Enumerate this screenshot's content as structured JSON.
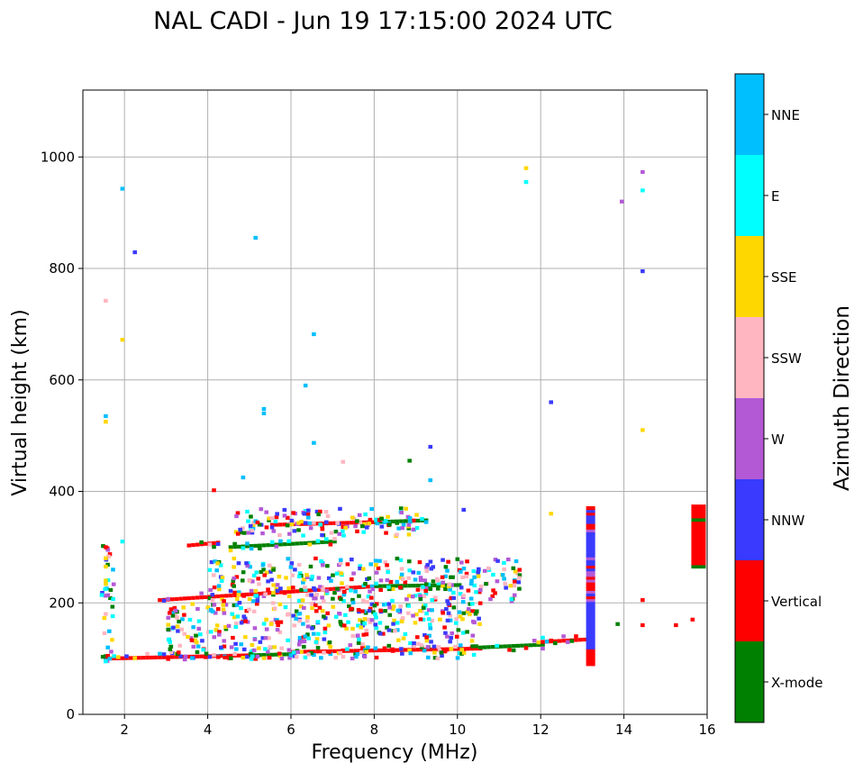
{
  "chart_data": {
    "type": "scatter",
    "title": "NAL CADI - Jun 19 17:15:00 2024 UTC",
    "xlabel": "Frequency (MHz)",
    "ylabel": "Virtual height (km)",
    "xlim": [
      1.0,
      16.0
    ],
    "ylim": [
      0,
      1120
    ],
    "xticks": [
      2,
      4,
      6,
      8,
      10,
      12,
      14,
      16
    ],
    "yticks": [
      0,
      200,
      400,
      600,
      800,
      1000
    ],
    "grid": true,
    "colorbar": {
      "label": "Azimuth Direction",
      "categories": [
        {
          "name": "X-mode",
          "color": "#008000"
        },
        {
          "name": "Vertical",
          "color": "#ff0000"
        },
        {
          "name": "NNW",
          "color": "#3a3aff"
        },
        {
          "name": "W",
          "color": "#b459d6"
        },
        {
          "name": "SSW",
          "color": "#ffb6c1"
        },
        {
          "name": "SSE",
          "color": "#ffd700"
        },
        {
          "name": "E",
          "color": "#00ffff"
        },
        {
          "name": "NNE",
          "color": "#00bfff"
        }
      ]
    },
    "scatter_points": [
      {
        "f": 1.5,
        "h": 95,
        "dir": "E"
      },
      {
        "f": 1.55,
        "h": 105,
        "dir": "Vertical"
      },
      {
        "f": 1.6,
        "h": 100,
        "dir": "NNE"
      },
      {
        "f": 1.55,
        "h": 120,
        "dir": "NNE"
      },
      {
        "f": 1.5,
        "h": 180,
        "dir": "SSW"
      },
      {
        "f": 1.5,
        "h": 240,
        "dir": "SSE"
      },
      {
        "f": 1.5,
        "h": 265,
        "dir": "SSE"
      },
      {
        "f": 1.5,
        "h": 280,
        "dir": "SSE"
      },
      {
        "f": 1.5,
        "h": 300,
        "dir": "Vertical"
      },
      {
        "f": 1.5,
        "h": 525,
        "dir": "SSE"
      },
      {
        "f": 1.5,
        "h": 535,
        "dir": "NNE"
      },
      {
        "f": 1.5,
        "h": 742,
        "dir": "SSW"
      },
      {
        "f": 1.9,
        "h": 310,
        "dir": "E"
      },
      {
        "f": 1.9,
        "h": 672,
        "dir": "SSE"
      },
      {
        "f": 1.9,
        "h": 943,
        "dir": "NNE"
      },
      {
        "f": 2.2,
        "h": 829,
        "dir": "NNW"
      },
      {
        "f": 4.1,
        "h": 402,
        "dir": "Vertical"
      },
      {
        "f": 4.8,
        "h": 425,
        "dir": "NNE"
      },
      {
        "f": 5.1,
        "h": 855,
        "dir": "NNE"
      },
      {
        "f": 5.3,
        "h": 540,
        "dir": "NNE"
      },
      {
        "f": 5.3,
        "h": 548,
        "dir": "NNE"
      },
      {
        "f": 6.3,
        "h": 590,
        "dir": "NNE"
      },
      {
        "f": 6.5,
        "h": 682,
        "dir": "NNE"
      },
      {
        "f": 6.5,
        "h": 487,
        "dir": "NNE"
      },
      {
        "f": 7.2,
        "h": 453,
        "dir": "SSW"
      },
      {
        "f": 8.8,
        "h": 455,
        "dir": "X-mode"
      },
      {
        "f": 9.3,
        "h": 480,
        "dir": "NNW"
      },
      {
        "f": 9.3,
        "h": 420,
        "dir": "NNE"
      },
      {
        "f": 10.1,
        "h": 367,
        "dir": "NNW"
      },
      {
        "f": 11.6,
        "h": 955,
        "dir": "E"
      },
      {
        "f": 11.6,
        "h": 980,
        "dir": "SSE"
      },
      {
        "f": 12.2,
        "h": 360,
        "dir": "SSE"
      },
      {
        "f": 12.2,
        "h": 560,
        "dir": "NNW"
      },
      {
        "f": 13.2,
        "h": 100,
        "dir": "Vertical"
      },
      {
        "f": 13.2,
        "h": 180,
        "dir": "NNW"
      },
      {
        "f": 13.2,
        "h": 300,
        "dir": "NNW"
      },
      {
        "f": 13.8,
        "h": 162,
        "dir": "X-mode"
      },
      {
        "f": 13.9,
        "h": 920,
        "dir": "W"
      },
      {
        "f": 14.4,
        "h": 160,
        "dir": "Vertical"
      },
      {
        "f": 14.4,
        "h": 205,
        "dir": "Vertical"
      },
      {
        "f": 14.4,
        "h": 510,
        "dir": "SSE"
      },
      {
        "f": 14.4,
        "h": 795,
        "dir": "NNW"
      },
      {
        "f": 14.4,
        "h": 940,
        "dir": "E"
      },
      {
        "f": 14.4,
        "h": 973,
        "dir": "W"
      },
      {
        "f": 15.2,
        "h": 160,
        "dir": "Vertical"
      },
      {
        "f": 15.6,
        "h": 170,
        "dir": "Vertical"
      },
      {
        "f": 15.8,
        "h": 320,
        "dir": "Vertical"
      }
    ],
    "traces": [
      {
        "f_start": 1.5,
        "f_end": 5.0,
        "h_start": 100,
        "h_end": 106,
        "dir": "Vertical"
      },
      {
        "f_start": 5.0,
        "f_end": 6.0,
        "h_start": 106,
        "h_end": 108,
        "dir": "X-mode"
      },
      {
        "f_start": 6.0,
        "f_end": 10.5,
        "h_start": 112,
        "h_end": 118,
        "dir": "Vertical"
      },
      {
        "f_start": 10.5,
        "f_end": 12.0,
        "h_start": 120,
        "h_end": 125,
        "dir": "X-mode"
      },
      {
        "f_start": 12.0,
        "f_end": 13.2,
        "h_start": 130,
        "h_end": 135,
        "dir": "Vertical"
      },
      {
        "f_start": 2.8,
        "f_end": 8.0,
        "h_start": 205,
        "h_end": 230,
        "dir": "Vertical"
      },
      {
        "f_start": 8.0,
        "f_end": 10.0,
        "h_start": 230,
        "h_end": 232,
        "dir": "X-mode"
      },
      {
        "f_start": 3.5,
        "f_end": 4.2,
        "h_start": 303,
        "h_end": 308,
        "dir": "Vertical"
      },
      {
        "f_start": 4.5,
        "f_end": 7.0,
        "h_start": 300,
        "h_end": 310,
        "dir": "X-mode"
      },
      {
        "f_start": 5.5,
        "f_end": 8.0,
        "h_start": 340,
        "h_end": 345,
        "dir": "Vertical"
      },
      {
        "f_start": 8.0,
        "f_end": 9.2,
        "h_start": 345,
        "h_end": 348,
        "dir": "X-mode"
      }
    ]
  }
}
